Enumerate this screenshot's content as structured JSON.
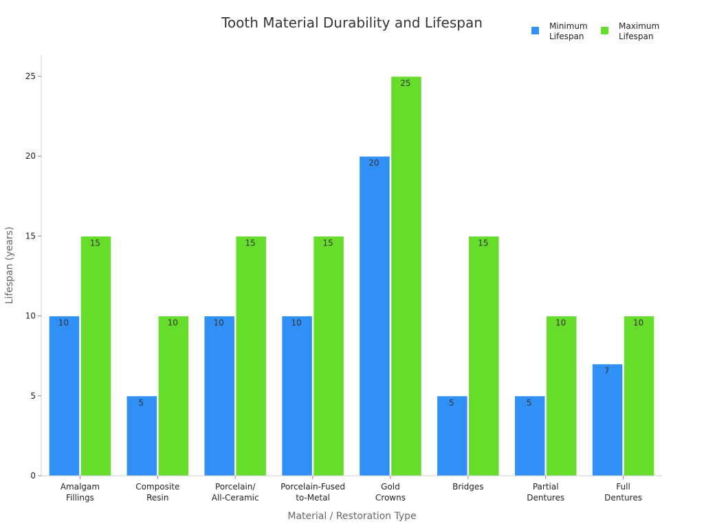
{
  "chart_data": {
    "type": "bar",
    "title": "Tooth Material Durability and Lifespan",
    "xlabel": "Material / Restoration Type",
    "ylabel": "Lifespan (years)",
    "ylim": [
      0,
      26
    ],
    "yticks": [
      0,
      5,
      10,
      15,
      20,
      25
    ],
    "grid": false,
    "legend_position": "top-right",
    "categories": [
      [
        "Amalgam",
        "Fillings"
      ],
      [
        "Composite",
        "Resin"
      ],
      [
        "Porcelain/",
        "All-Ceramic"
      ],
      [
        "Porcelain-Fused",
        "to-Metal"
      ],
      [
        "Gold",
        "Crowns"
      ],
      [
        "Bridges"
      ],
      [
        "Partial",
        "Dentures"
      ],
      [
        "Full",
        "Dentures"
      ]
    ],
    "series": [
      {
        "name": [
          "Minimum",
          "Lifespan"
        ],
        "color": "#3090f5",
        "values": [
          10,
          5,
          10,
          10,
          20,
          5,
          5,
          7
        ]
      },
      {
        "name": [
          "Maximum",
          "Lifespan"
        ],
        "color": "#66dd2a",
        "values": [
          15,
          10,
          15,
          15,
          25,
          15,
          10,
          10
        ]
      }
    ]
  }
}
